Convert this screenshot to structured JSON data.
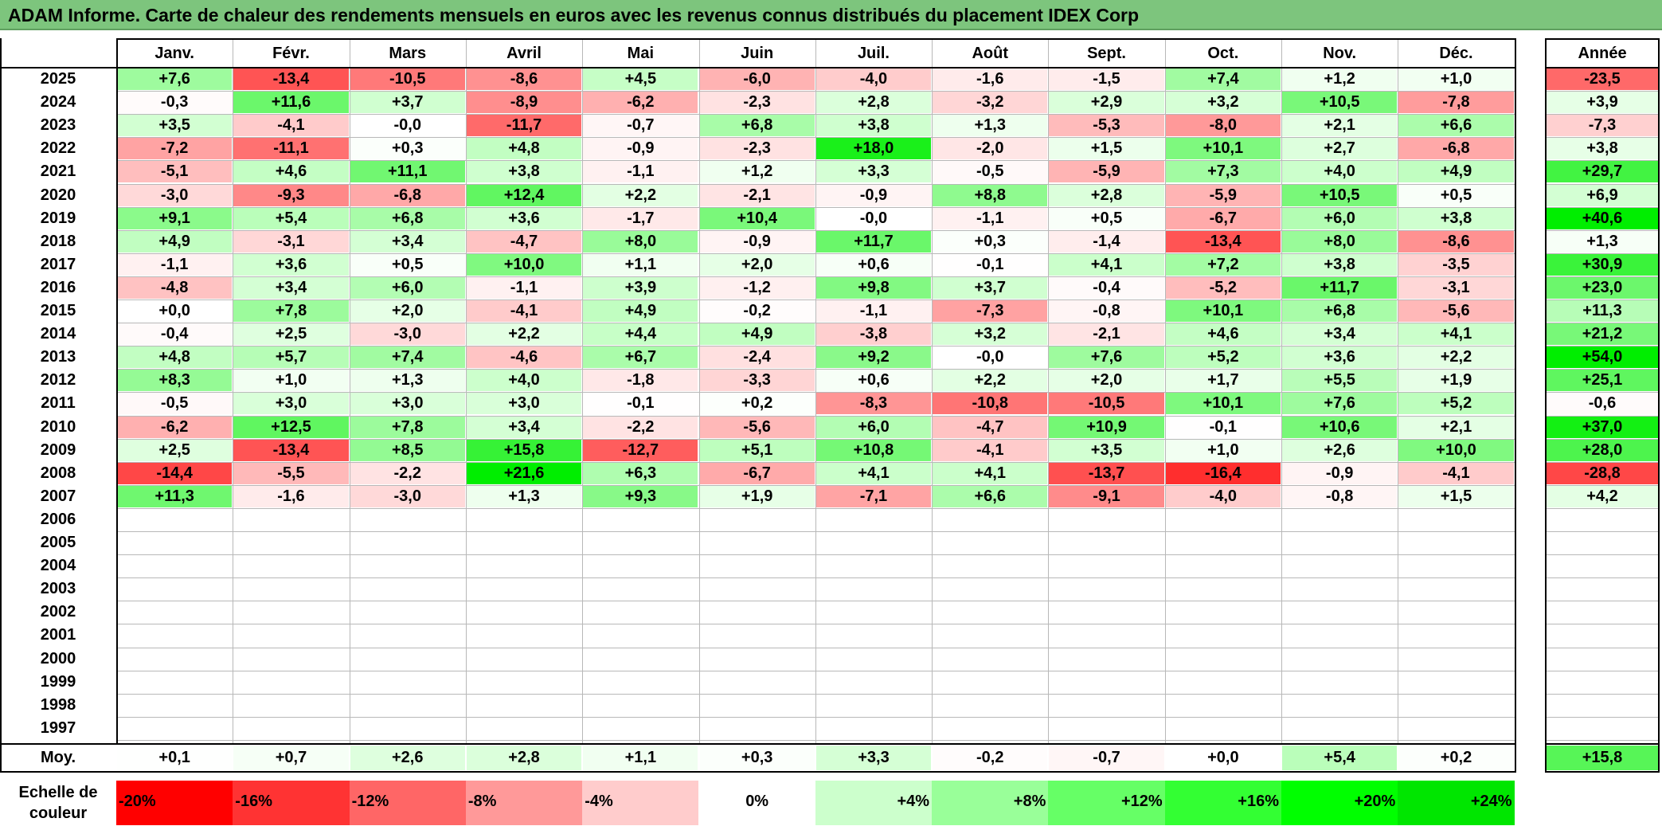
{
  "title": "ADAM Informe. Carte de chaleur des rendements mensuels en euros avec les revenus connus distribués du placement IDEX Corp",
  "chart_data": {
    "type": "heatmap",
    "months": [
      "Janv.",
      "Févr.",
      "Mars",
      "Avril",
      "Mai",
      "Juin",
      "Juil.",
      "Août",
      "Sept.",
      "Oct.",
      "Nov.",
      "Déc."
    ],
    "annual_label": "Année",
    "average_label": "Moy.",
    "rows": [
      {
        "year": "2025",
        "values": [
          "+7,6",
          "-13,4",
          "-10,5",
          "-8,6",
          "+4,5",
          "-6,0",
          "-4,0",
          "-1,6",
          "-1,5",
          "+7,4",
          "+1,2",
          "+1,0"
        ],
        "annual": "-23,5"
      },
      {
        "year": "2024",
        "values": [
          "-0,3",
          "+11,6",
          "+3,7",
          "-8,9",
          "-6,2",
          "-2,3",
          "+2,8",
          "-3,2",
          "+2,9",
          "+3,2",
          "+10,5",
          "-7,8"
        ],
        "annual": "+3,9"
      },
      {
        "year": "2023",
        "values": [
          "+3,5",
          "-4,1",
          "-0,0",
          "-11,7",
          "-0,7",
          "+6,8",
          "+3,8",
          "+1,3",
          "-5,3",
          "-8,0",
          "+2,1",
          "+6,6"
        ],
        "annual": "-7,3"
      },
      {
        "year": "2022",
        "values": [
          "-7,2",
          "-11,1",
          "+0,3",
          "+4,8",
          "-0,9",
          "-2,3",
          "+18,0",
          "-2,0",
          "+1,5",
          "+10,1",
          "+2,7",
          "-6,8"
        ],
        "annual": "+3,8"
      },
      {
        "year": "2021",
        "values": [
          "-5,1",
          "+4,6",
          "+11,1",
          "+3,8",
          "-1,1",
          "+1,2",
          "+3,3",
          "-0,5",
          "-5,9",
          "+7,3",
          "+4,0",
          "+4,9"
        ],
        "annual": "+29,7"
      },
      {
        "year": "2020",
        "values": [
          "-3,0",
          "-9,3",
          "-6,8",
          "+12,4",
          "+2,2",
          "-2,1",
          "-0,9",
          "+8,8",
          "+2,8",
          "-5,9",
          "+10,5",
          "+0,5"
        ],
        "annual": "+6,9"
      },
      {
        "year": "2019",
        "values": [
          "+9,1",
          "+5,4",
          "+6,8",
          "+3,6",
          "-1,7",
          "+10,4",
          "-0,0",
          "-1,1",
          "+0,5",
          "-6,7",
          "+6,0",
          "+3,8"
        ],
        "annual": "+40,6"
      },
      {
        "year": "2018",
        "values": [
          "+4,9",
          "-3,1",
          "+3,4",
          "-4,7",
          "+8,0",
          "-0,9",
          "+11,7",
          "+0,3",
          "-1,4",
          "-13,4",
          "+8,0",
          "-8,6"
        ],
        "annual": "+1,3"
      },
      {
        "year": "2017",
        "values": [
          "-1,1",
          "+3,6",
          "+0,5",
          "+10,0",
          "+1,1",
          "+2,0",
          "+0,6",
          "-0,1",
          "+4,1",
          "+7,2",
          "+3,8",
          "-3,5"
        ],
        "annual": "+30,9"
      },
      {
        "year": "2016",
        "values": [
          "-4,8",
          "+3,4",
          "+6,0",
          "-1,1",
          "+3,9",
          "-1,2",
          "+9,8",
          "+3,7",
          "-0,4",
          "-5,2",
          "+11,7",
          "-3,1"
        ],
        "annual": "+23,0"
      },
      {
        "year": "2015",
        "values": [
          "+0,0",
          "+7,8",
          "+2,0",
          "-4,1",
          "+4,9",
          "-0,2",
          "-1,1",
          "-7,3",
          "-0,8",
          "+10,1",
          "+6,8",
          "-5,6"
        ],
        "annual": "+11,3"
      },
      {
        "year": "2014",
        "values": [
          "-0,4",
          "+2,5",
          "-3,0",
          "+2,2",
          "+4,4",
          "+4,9",
          "-3,8",
          "+3,2",
          "-2,1",
          "+4,6",
          "+3,4",
          "+4,1"
        ],
        "annual": "+21,2"
      },
      {
        "year": "2013",
        "values": [
          "+4,8",
          "+5,7",
          "+7,4",
          "-4,6",
          "+6,7",
          "-2,4",
          "+9,2",
          "-0,0",
          "+7,6",
          "+5,2",
          "+3,6",
          "+2,2"
        ],
        "annual": "+54,0"
      },
      {
        "year": "2012",
        "values": [
          "+8,3",
          "+1,0",
          "+1,3",
          "+4,0",
          "-1,8",
          "-3,3",
          "+0,6",
          "+2,2",
          "+2,0",
          "+1,7",
          "+5,5",
          "+1,9"
        ],
        "annual": "+25,1"
      },
      {
        "year": "2011",
        "values": [
          "-0,5",
          "+3,0",
          "+3,0",
          "+3,0",
          "-0,1",
          "+0,2",
          "-8,3",
          "-10,8",
          "-10,5",
          "+10,1",
          "+7,6",
          "+5,2"
        ],
        "annual": "-0,6"
      },
      {
        "year": "2010",
        "values": [
          "-6,2",
          "+12,5",
          "+7,8",
          "+3,4",
          "-2,2",
          "-5,6",
          "+6,0",
          "-4,7",
          "+10,9",
          "-0,1",
          "+10,6",
          "+2,1"
        ],
        "annual": "+37,0"
      },
      {
        "year": "2009",
        "values": [
          "+2,5",
          "-13,4",
          "+8,5",
          "+15,8",
          "-12,7",
          "+5,1",
          "+10,8",
          "-4,1",
          "+3,5",
          "+1,0",
          "+2,6",
          "+10,0"
        ],
        "annual": "+28,0"
      },
      {
        "year": "2008",
        "values": [
          "-14,4",
          "-5,5",
          "-2,2",
          "+21,6",
          "+6,3",
          "-6,7",
          "+4,1",
          "+4,1",
          "-13,7",
          "-16,4",
          "-0,9",
          "-4,1"
        ],
        "annual": "-28,8"
      },
      {
        "year": "2007",
        "values": [
          "+11,3",
          "-1,6",
          "-3,0",
          "+1,3",
          "+9,3",
          "+1,9",
          "-7,1",
          "+6,6",
          "-9,1",
          "-4,0",
          "-0,8",
          "+1,5"
        ],
        "annual": "+4,2"
      },
      {
        "year": "2006",
        "values": [
          "",
          "",
          "",
          "",
          "",
          "",
          "",
          "",
          "",
          "",
          "",
          ""
        ],
        "annual": ""
      },
      {
        "year": "2005",
        "values": [
          "",
          "",
          "",
          "",
          "",
          "",
          "",
          "",
          "",
          "",
          "",
          ""
        ],
        "annual": ""
      },
      {
        "year": "2004",
        "values": [
          "",
          "",
          "",
          "",
          "",
          "",
          "",
          "",
          "",
          "",
          "",
          ""
        ],
        "annual": ""
      },
      {
        "year": "2003",
        "values": [
          "",
          "",
          "",
          "",
          "",
          "",
          "",
          "",
          "",
          "",
          "",
          ""
        ],
        "annual": ""
      },
      {
        "year": "2002",
        "values": [
          "",
          "",
          "",
          "",
          "",
          "",
          "",
          "",
          "",
          "",
          "",
          ""
        ],
        "annual": ""
      },
      {
        "year": "2001",
        "values": [
          "",
          "",
          "",
          "",
          "",
          "",
          "",
          "",
          "",
          "",
          "",
          ""
        ],
        "annual": ""
      },
      {
        "year": "2000",
        "values": [
          "",
          "",
          "",
          "",
          "",
          "",
          "",
          "",
          "",
          "",
          "",
          ""
        ],
        "annual": ""
      },
      {
        "year": "1999",
        "values": [
          "",
          "",
          "",
          "",
          "",
          "",
          "",
          "",
          "",
          "",
          "",
          ""
        ],
        "annual": ""
      },
      {
        "year": "1998",
        "values": [
          "",
          "",
          "",
          "",
          "",
          "",
          "",
          "",
          "",
          "",
          "",
          ""
        ],
        "annual": ""
      },
      {
        "year": "1997",
        "values": [
          "",
          "",
          "",
          "",
          "",
          "",
          "",
          "",
          "",
          "",
          "",
          ""
        ],
        "annual": ""
      }
    ],
    "average": {
      "values": [
        "+0,1",
        "+0,7",
        "+2,6",
        "+2,8",
        "+1,1",
        "+0,3",
        "+3,3",
        "-0,2",
        "-0,7",
        "+0,0",
        "+5,4",
        "+0,2"
      ],
      "annual": "+15,8"
    },
    "color_scale": {
      "label": "Echelle de couleur",
      "steps": [
        {
          "label": "-20%",
          "color": "#ff0000"
        },
        {
          "label": "-16%",
          "color": "#ff3333"
        },
        {
          "label": "-12%",
          "color": "#ff6666"
        },
        {
          "label": "-8%",
          "color": "#ff9999"
        },
        {
          "label": "-4%",
          "color": "#ffcccc"
        },
        {
          "label": "0%",
          "color": "#ffffff"
        },
        {
          "label": "+4%",
          "color": "#ccffcc"
        },
        {
          "label": "+8%",
          "color": "#99ff99"
        },
        {
          "label": "+12%",
          "color": "#66ff66"
        },
        {
          "label": "+16%",
          "color": "#33ff33"
        },
        {
          "label": "+20%",
          "color": "#00ff00"
        },
        {
          "label": "+24%",
          "color": "#00e600"
        }
      ]
    }
  }
}
